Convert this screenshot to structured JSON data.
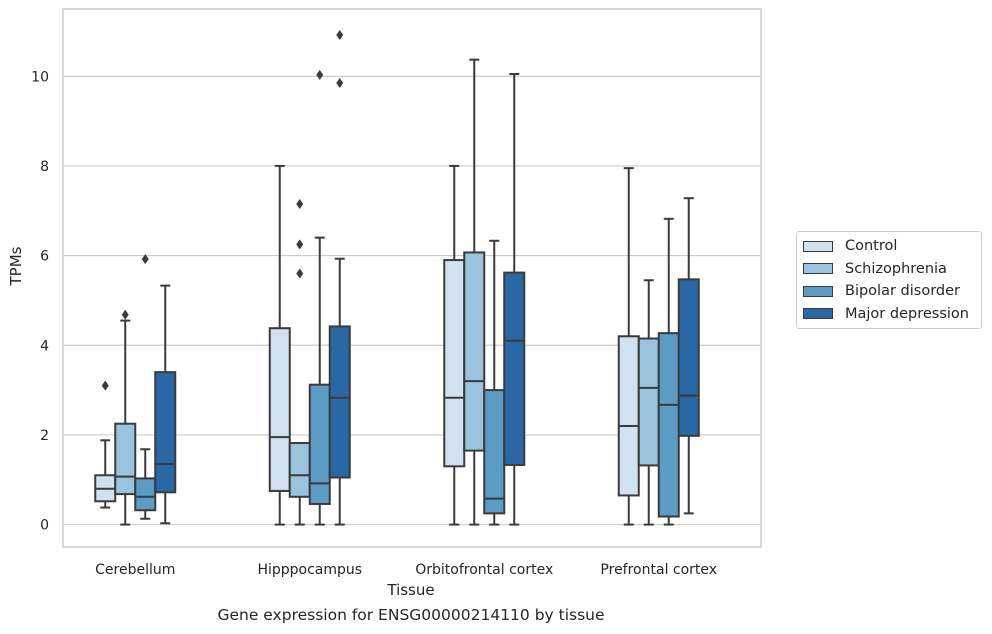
{
  "chart_data": {
    "type": "boxplot",
    "caption": "Gene expression for ENSG00000214110 by tissue",
    "xlabel": "Tissue",
    "ylabel": "TPMs",
    "ylim": [
      -0.5,
      11.5
    ],
    "yticks": [
      "0",
      "2",
      "4",
      "6",
      "8",
      "10"
    ],
    "grid": "horizontal",
    "legend_position": "right",
    "categories": [
      "Cerebellum",
      "Hipppocampus",
      "Orbitofrontal cortex",
      "Prefrontal cortex"
    ],
    "series": [
      {
        "name": "Control",
        "color": "#d1e1ef",
        "boxes": [
          {
            "whisker_low": 0.38,
            "q1": 0.52,
            "median": 0.8,
            "q3": 1.1,
            "whisker_high": 1.88,
            "outliers": [
              3.1
            ]
          },
          {
            "whisker_low": 0.0,
            "q1": 0.75,
            "median": 1.95,
            "q3": 4.38,
            "whisker_high": 8.0,
            "outliers": []
          },
          {
            "whisker_low": 0.0,
            "q1": 1.3,
            "median": 2.83,
            "q3": 5.9,
            "whisker_high": 8.0,
            "outliers": []
          },
          {
            "whisker_low": 0.0,
            "q1": 0.65,
            "median": 2.2,
            "q3": 4.2,
            "whisker_high": 7.95,
            "outliers": []
          }
        ]
      },
      {
        "name": "Schizophrenia",
        "color": "#9ac3dd",
        "boxes": [
          {
            "whisker_low": 0.0,
            "q1": 0.68,
            "median": 1.07,
            "q3": 2.25,
            "whisker_high": 4.55,
            "outliers": [
              4.68
            ]
          },
          {
            "whisker_low": 0.0,
            "q1": 0.62,
            "median": 1.1,
            "q3": 1.82,
            "whisker_high": 1.82,
            "outliers": [
              5.6,
              6.25,
              7.15
            ]
          },
          {
            "whisker_low": 0.0,
            "q1": 1.65,
            "median": 3.2,
            "q3": 6.07,
            "whisker_high": 10.37,
            "outliers": []
          },
          {
            "whisker_low": 0.0,
            "q1": 1.32,
            "median": 3.05,
            "q3": 4.15,
            "whisker_high": 5.45,
            "outliers": []
          }
        ]
      },
      {
        "name": "Bipolar disorder",
        "color": "#5b9bc6",
        "boxes": [
          {
            "whisker_low": 0.13,
            "q1": 0.32,
            "median": 0.62,
            "q3": 1.03,
            "whisker_high": 1.68,
            "outliers": [
              5.92
            ]
          },
          {
            "whisker_low": 0.0,
            "q1": 0.46,
            "median": 0.92,
            "q3": 3.12,
            "whisker_high": 6.4,
            "outliers": [
              10.03
            ]
          },
          {
            "whisker_low": 0.0,
            "q1": 0.25,
            "median": 0.58,
            "q3": 3.0,
            "whisker_high": 6.33,
            "outliers": []
          },
          {
            "whisker_low": 0.0,
            "q1": 0.18,
            "median": 2.67,
            "q3": 4.27,
            "whisker_high": 6.82,
            "outliers": []
          }
        ]
      },
      {
        "name": "Major depression",
        "color": "#2a67a5",
        "boxes": [
          {
            "whisker_low": 0.03,
            "q1": 0.72,
            "median": 1.35,
            "q3": 3.4,
            "whisker_high": 5.33,
            "outliers": []
          },
          {
            "whisker_low": 0.0,
            "q1": 1.05,
            "median": 2.83,
            "q3": 4.42,
            "whisker_high": 5.93,
            "outliers": [
              9.85,
              10.92
            ]
          },
          {
            "whisker_low": 0.0,
            "q1": 1.33,
            "median": 4.1,
            "q3": 5.62,
            "whisker_high": 10.05,
            "outliers": []
          },
          {
            "whisker_low": 0.25,
            "q1": 1.98,
            "median": 2.88,
            "q3": 5.47,
            "whisker_high": 7.28,
            "outliers": []
          }
        ]
      }
    ]
  }
}
